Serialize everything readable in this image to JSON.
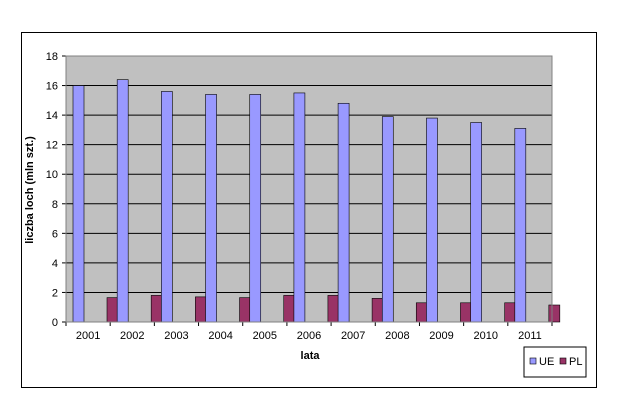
{
  "chart_data": {
    "type": "bar",
    "title": "",
    "xlabel": "lata",
    "ylabel": "liczba loch (mln szt.)",
    "ylim": [
      0,
      18
    ],
    "yticks": [
      0,
      2,
      4,
      6,
      8,
      10,
      12,
      14,
      16,
      18
    ],
    "grid": true,
    "legend_position": "bottom-right",
    "categories": [
      "2001",
      "2002",
      "2003",
      "2004",
      "2005",
      "2006",
      "2007",
      "2008",
      "2009",
      "2010",
      "2011"
    ],
    "series": [
      {
        "name": "UE",
        "color": "#9999ff",
        "values": [
          16.0,
          16.4,
          15.6,
          15.4,
          15.4,
          15.5,
          14.8,
          13.9,
          13.8,
          13.5,
          13.1
        ]
      },
      {
        "name": "PL",
        "color": "#993366",
        "values": [
          1.65,
          1.8,
          1.7,
          1.65,
          1.8,
          1.8,
          1.6,
          1.3,
          1.3,
          1.3,
          1.15
        ]
      }
    ],
    "plot_background": "#c0c0c0"
  }
}
